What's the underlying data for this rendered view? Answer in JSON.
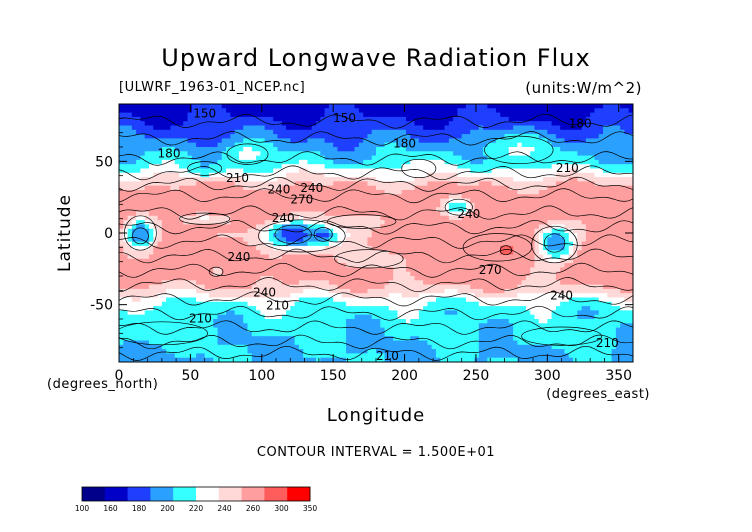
{
  "chart_data": {
    "type": "heatmap",
    "title": "Upward Longwave Radiation Flux",
    "source_label": "[ULWRF_1963-01_NCEP.nc]",
    "units_label": "(units:W/m^2)",
    "xlabel": "Longitude",
    "xunit_label": "(degrees_east)",
    "ylabel": "Latitude",
    "yunit_label": "(degrees_north)",
    "xlim": [
      0,
      360
    ],
    "ylim": [
      -90,
      90
    ],
    "x_ticks": [
      "0",
      "50",
      "100",
      "150",
      "200",
      "250",
      "300",
      "350"
    ],
    "y_ticks": [
      "50",
      "0",
      "-50"
    ],
    "y_tick_values": [
      50,
      0,
      -50
    ],
    "x_tick_values": [
      0,
      50,
      100,
      150,
      200,
      250,
      300,
      350
    ],
    "contour_interval_text": "CONTOUR INTERVAL = 1.500E+01",
    "contour_labels": [
      {
        "text": "150",
        "lon": 60,
        "lat": 83
      },
      {
        "text": "150",
        "lon": 158,
        "lat": 80
      },
      {
        "text": "180",
        "lon": 35,
        "lat": 55
      },
      {
        "text": "180",
        "lon": 200,
        "lat": 62
      },
      {
        "text": "180",
        "lon": 323,
        "lat": 76
      },
      {
        "text": "210",
        "lon": 314,
        "lat": 45
      },
      {
        "text": "210",
        "lon": 83,
        "lat": 38
      },
      {
        "text": "240",
        "lon": 112,
        "lat": 30
      },
      {
        "text": "240",
        "lon": 135,
        "lat": 31
      },
      {
        "text": "270",
        "lon": 128,
        "lat": 23
      },
      {
        "text": "240",
        "lon": 115,
        "lat": 10
      },
      {
        "text": "240",
        "lon": 245,
        "lat": 13
      },
      {
        "text": "240",
        "lon": 84,
        "lat": -17
      },
      {
        "text": "270",
        "lon": 260,
        "lat": -26
      },
      {
        "text": "240",
        "lon": 102,
        "lat": -42
      },
      {
        "text": "210",
        "lon": 111,
        "lat": -51
      },
      {
        "text": "240",
        "lon": 310,
        "lat": -44
      },
      {
        "text": "210",
        "lon": 57,
        "lat": -60
      },
      {
        "text": "210",
        "lon": 342,
        "lat": -77
      },
      {
        "text": "210",
        "lon": 188,
        "lat": -86
      }
    ],
    "colorbar": {
      "levels": [
        "100",
        "160",
        "180",
        "200",
        "220",
        "240",
        "260",
        "300",
        "350"
      ],
      "colors": [
        "#00008b",
        "#0000c8",
        "#1f3fff",
        "#2aa0ff",
        "#36ffff",
        "#ffffff",
        "#ffd8d8",
        "#ff9e9e",
        "#ff5c5c",
        "#ff0000"
      ]
    },
    "bands": [
      {
        "lat": 90,
        "value": 150
      },
      {
        "lat": 80,
        "value": 160
      },
      {
        "lat": 70,
        "value": 175
      },
      {
        "lat": 60,
        "value": 190
      },
      {
        "lat": 50,
        "value": 205
      },
      {
        "lat": 45,
        "value": 222
      },
      {
        "lat": 40,
        "value": 238
      },
      {
        "lat": 35,
        "value": 255
      },
      {
        "lat": 30,
        "value": 268
      },
      {
        "lat": 20,
        "value": 285
      },
      {
        "lat": 10,
        "value": 285
      },
      {
        "lat": 0,
        "value": 278
      },
      {
        "lat": -10,
        "value": 285
      },
      {
        "lat": -20,
        "value": 285
      },
      {
        "lat": -30,
        "value": 272
      },
      {
        "lat": -38,
        "value": 258
      },
      {
        "lat": -43,
        "value": 240
      },
      {
        "lat": -48,
        "value": 222
      },
      {
        "lat": -55,
        "value": 210
      },
      {
        "lat": -65,
        "value": 205
      },
      {
        "lat": -78,
        "value": 200
      },
      {
        "lat": -90,
        "value": 196
      }
    ],
    "anomalies": [
      {
        "lon": 15,
        "lat": 0,
        "rx": 14,
        "ry": 15,
        "value": 195
      },
      {
        "lon": 15,
        "lat": -2,
        "rx": 7,
        "ry": 7,
        "value": 182
      },
      {
        "lon": 128,
        "lat": -2,
        "rx": 38,
        "ry": 14,
        "value": 200
      },
      {
        "lon": 122,
        "lat": -1,
        "rx": 16,
        "ry": 8,
        "value": 165
      },
      {
        "lon": 143,
        "lat": -1,
        "rx": 8,
        "ry": 6,
        "value": 170
      },
      {
        "lon": 305,
        "lat": -8,
        "rx": 20,
        "ry": 16,
        "value": 196
      },
      {
        "lon": 305,
        "lat": -7,
        "rx": 9,
        "ry": 8,
        "value": 170
      },
      {
        "lon": 238,
        "lat": 18,
        "rx": 12,
        "ry": 7,
        "value": 200
      },
      {
        "lon": 60,
        "lat": 10,
        "rx": 22,
        "ry": 5,
        "value": 238
      },
      {
        "lon": 170,
        "lat": 8,
        "rx": 30,
        "ry": 6,
        "value": 245
      },
      {
        "lon": 175,
        "lat": -18,
        "rx": 30,
        "ry": 8,
        "value": 240
      },
      {
        "lon": 265,
        "lat": -10,
        "rx": 30,
        "ry": 12,
        "value": 292
      },
      {
        "lon": 271,
        "lat": -12,
        "rx": 5,
        "ry": 4,
        "value": 318
      },
      {
        "lon": 68,
        "lat": -27,
        "rx": 6,
        "ry": 4,
        "value": 245
      },
      {
        "lon": 90,
        "lat": 55,
        "rx": 18,
        "ry": 9,
        "value": 225
      },
      {
        "lon": 280,
        "lat": 58,
        "rx": 30,
        "ry": 12,
        "value": 222
      },
      {
        "lon": 210,
        "lat": 45,
        "rx": 15,
        "ry": 8,
        "value": 232
      },
      {
        "lon": 60,
        "lat": 45,
        "rx": 15,
        "ry": 6,
        "value": 198
      },
      {
        "lon": 30,
        "lat": -70,
        "rx": 40,
        "ry": 10,
        "value": 208
      },
      {
        "lon": 310,
        "lat": -72,
        "rx": 35,
        "ry": 8,
        "value": 213
      }
    ]
  }
}
